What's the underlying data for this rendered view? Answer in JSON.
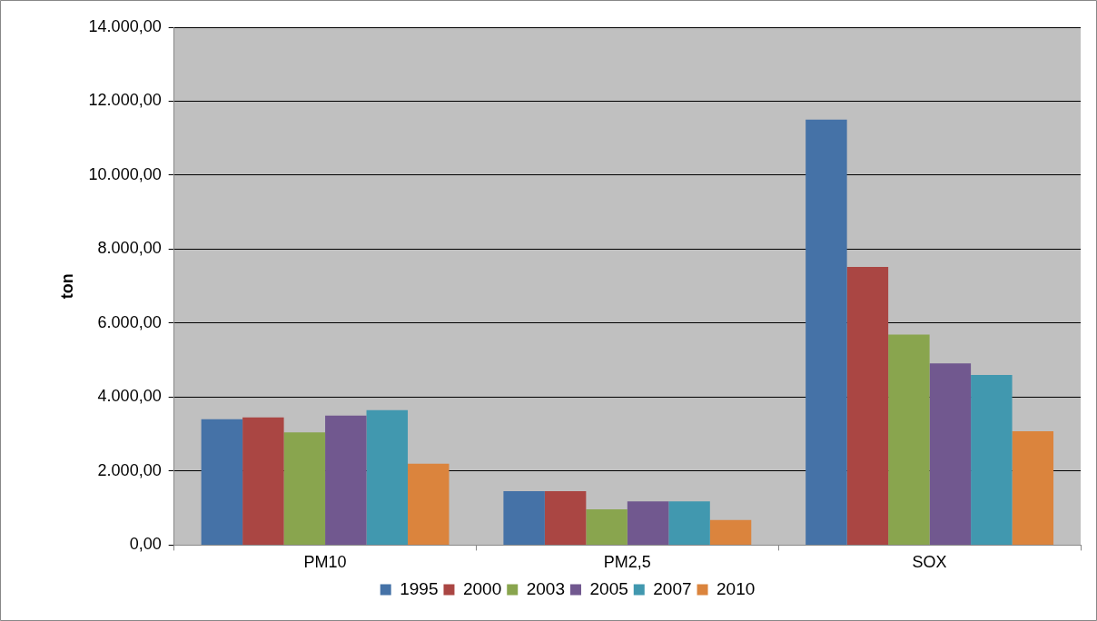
{
  "chart_data": {
    "type": "bar",
    "ylabel": "ton",
    "categories": [
      "PM10",
      "PM2,5",
      "SOX"
    ],
    "series": [
      {
        "name": "1995",
        "color": "#4572a7",
        "values": [
          3400,
          1460,
          11500
        ]
      },
      {
        "name": "2000",
        "color": "#aa4643",
        "values": [
          3450,
          1460,
          7520
        ]
      },
      {
        "name": "2003",
        "color": "#89a54e",
        "values": [
          3050,
          970,
          5690
        ]
      },
      {
        "name": "2005",
        "color": "#71588f",
        "values": [
          3500,
          1180,
          4910
        ]
      },
      {
        "name": "2007",
        "color": "#4198af",
        "values": [
          3650,
          1180,
          4600
        ]
      },
      {
        "name": "2010",
        "color": "#db843d",
        "values": [
          2200,
          680,
          3080
        ]
      }
    ],
    "ylim": [
      0,
      14000
    ],
    "yticks": [
      {
        "value": 0,
        "label": "0,00"
      },
      {
        "value": 2000,
        "label": "2.000,00"
      },
      {
        "value": 4000,
        "label": "4.000,00"
      },
      {
        "value": 6000,
        "label": "6.000,00"
      },
      {
        "value": 8000,
        "label": "8.000,00"
      },
      {
        "value": 10000,
        "label": "10.000,00"
      },
      {
        "value": 12000,
        "label": "12.000,00"
      },
      {
        "value": 14000,
        "label": "14.000,00"
      }
    ],
    "grid": "y",
    "legend": "bottom"
  }
}
